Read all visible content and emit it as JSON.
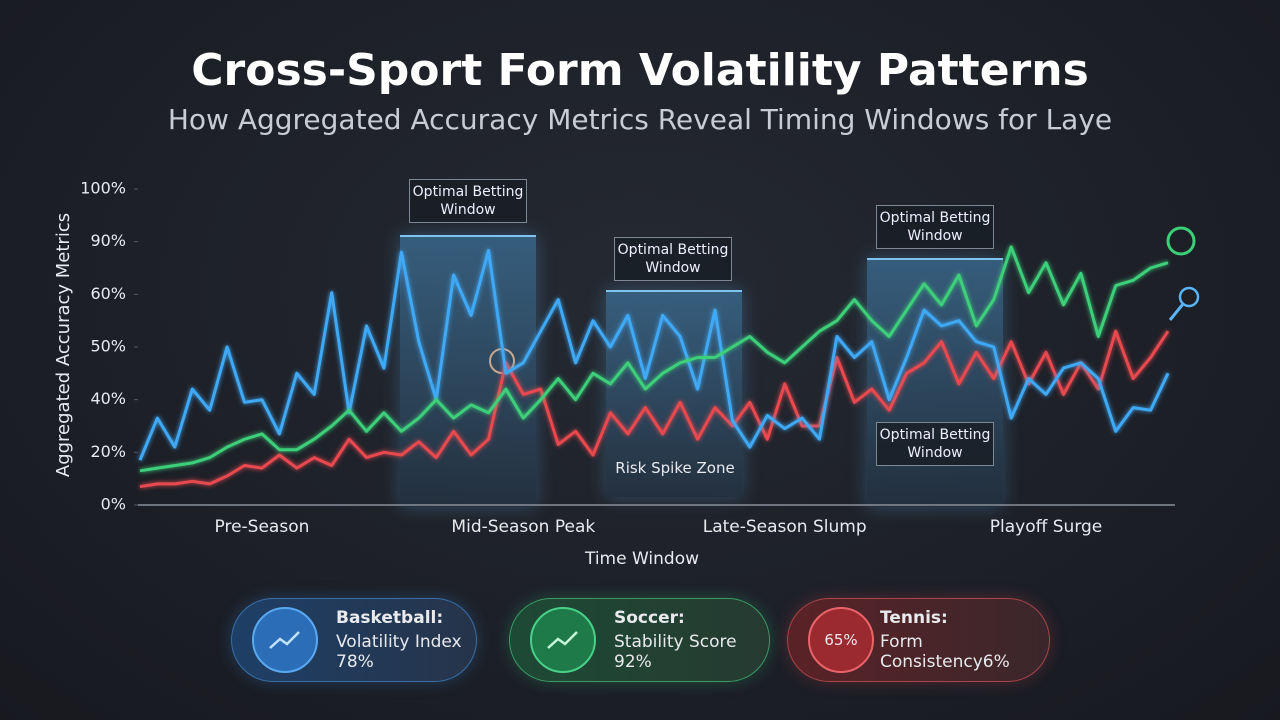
{
  "chart_data": {
    "type": "line",
    "title": "Cross-Sport Form Volatility Patterns",
    "subtitle": "How Aggregated Accuracy Metrics Reveal Timing Windows for Laye",
    "y_label": "Aggregated Accuracy Metrics",
    "x_label": "Time Window",
    "categories": [
      null,
      null,
      null,
      null,
      null,
      null,
      null,
      "Pre-Season",
      null,
      null,
      null,
      null,
      null,
      null,
      null,
      null,
      null,
      null,
      null,
      null,
      null,
      null,
      "Mid-Season Peak",
      null,
      null,
      null,
      null,
      null,
      null,
      null,
      null,
      null,
      null,
      null,
      null,
      null,
      null,
      "Late-Season Slump",
      null,
      null,
      null,
      null,
      null,
      null,
      null,
      null,
      null,
      null,
      null,
      null,
      null,
      null,
      "Playoff Surge",
      null,
      null,
      null,
      null,
      null,
      null,
      null
    ],
    "ylim": [
      0,
      100
    ],
    "yticks": [
      {
        "value": 0,
        "label": "0%"
      },
      {
        "value": 20,
        "label": "20%"
      },
      {
        "value": 40,
        "label": "40%"
      },
      {
        "value": 50,
        "label": "50%"
      },
      {
        "value": 60,
        "label": "60%"
      },
      {
        "value": 90,
        "label": "90%"
      },
      {
        "value": 100,
        "label": "100%"
      }
    ],
    "series": [
      {
        "color": "#3fa9f5",
        "values": [
          17,
          33,
          22,
          42,
          36,
          50,
          39,
          40,
          27,
          45,
          41,
          61,
          35,
          54,
          46,
          84,
          51,
          40,
          71,
          56,
          85,
          45,
          47,
          53,
          59,
          47,
          55,
          50,
          56,
          44,
          56,
          52,
          42,
          57,
          32,
          22,
          34,
          29,
          33,
          25,
          52,
          48,
          51,
          40,
          48,
          57,
          54,
          55,
          51,
          50,
          33,
          44,
          41,
          46,
          47,
          44,
          28,
          37,
          36,
          45
        ]
      },
      {
        "color": "#3ccf7a",
        "values": [
          13,
          14,
          15,
          16,
          18,
          22,
          25,
          27,
          21,
          21,
          25,
          30,
          36,
          28,
          35,
          28,
          33,
          40,
          33,
          38,
          35,
          42,
          33,
          40,
          44,
          40,
          45,
          43,
          47,
          42,
          45,
          47,
          48,
          48,
          50,
          52,
          49,
          47,
          50,
          53,
          55,
          59,
          55,
          52,
          57,
          66,
          58,
          71,
          54,
          59,
          87,
          61,
          78,
          58,
          72,
          52,
          65,
          68,
          75,
          78
        ]
      },
      {
        "color": "#e8484f",
        "values": [
          7,
          8,
          8,
          9,
          8,
          11,
          15,
          14,
          19,
          14,
          18,
          15,
          25,
          18,
          20,
          19,
          24,
          18,
          28,
          19,
          25,
          47,
          41,
          42,
          23,
          28,
          19,
          35,
          27,
          37,
          27,
          39,
          25,
          37,
          30,
          39,
          25,
          43,
          30,
          30,
          48,
          39,
          42,
          36,
          45,
          47,
          51,
          43,
          49,
          44,
          51,
          43,
          49,
          41,
          47,
          42,
          53,
          44,
          48,
          53
        ]
      }
    ],
    "annotations": [
      "Optimal Betting Window",
      "Optimal Betting Window",
      "Optimal Betting Window",
      "Optimal Betting Window",
      "Risk Spike Zone"
    ]
  },
  "cards": [
    {
      "title": "Basketball:",
      "text": "Volatility Index 78%"
    },
    {
      "title": "Soccer:",
      "text": "Stability Score 92%"
    },
    {
      "badge": "65%",
      "title": "Tennis:",
      "text": "Form Consistency6%"
    }
  ]
}
